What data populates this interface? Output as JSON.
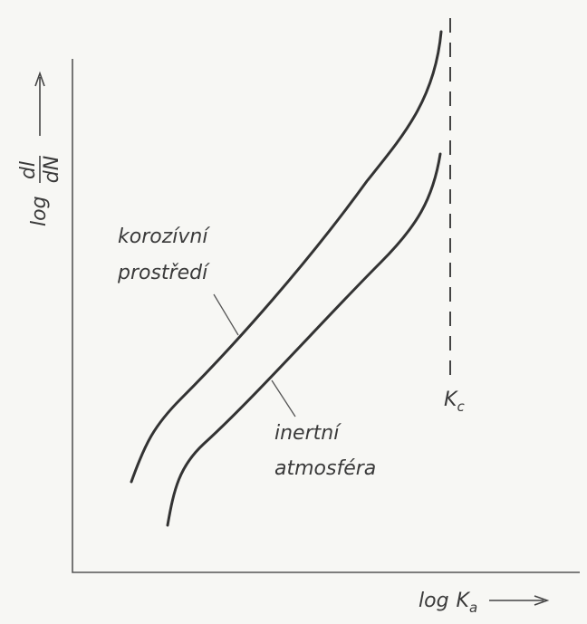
{
  "axes": {
    "y_label": {
      "prefix": "log",
      "numerator": "dl",
      "denominator": "dN"
    },
    "x_label": {
      "prefix": "log",
      "symbol": "K",
      "subscript": "a"
    }
  },
  "asymptote": {
    "symbol": "K",
    "subscript": "c"
  },
  "curves": [
    {
      "label": [
        "korozívní",
        "prostředí"
      ]
    },
    {
      "label": [
        "inertní",
        "atmosféra"
      ]
    }
  ]
}
